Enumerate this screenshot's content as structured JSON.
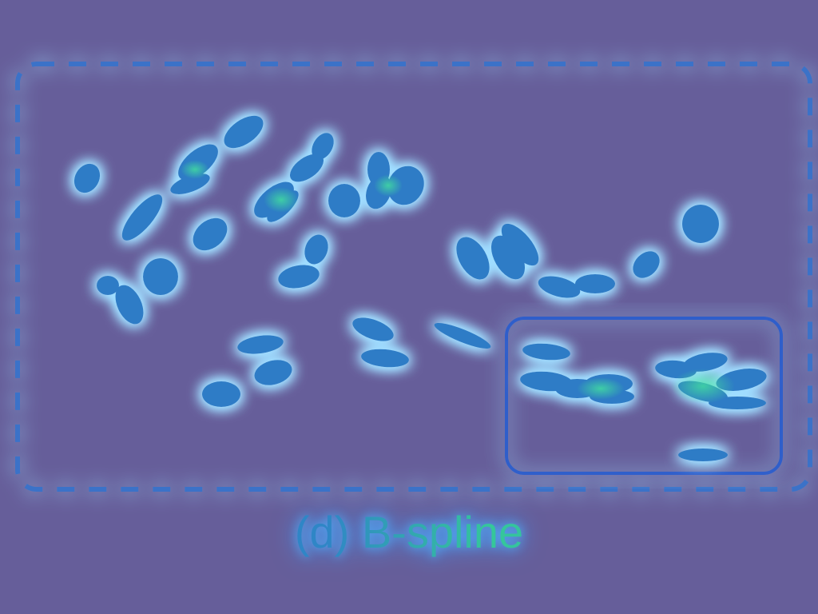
{
  "caption": "(d) B-spline",
  "colors": {
    "background": "#665e9a",
    "glow": "#58b8ff",
    "blob": "#2f7cc6",
    "blob_highlight": "#3fe0a0",
    "frame": "#3a72c8",
    "inset_frame": "#2b5fd0"
  }
}
